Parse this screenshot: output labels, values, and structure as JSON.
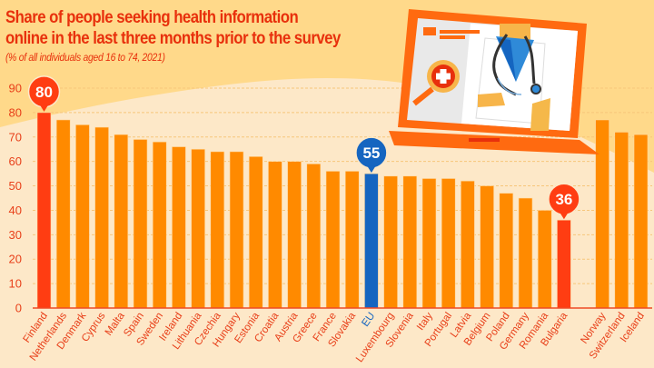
{
  "header": {
    "title_line1": "Share of people seeking health information",
    "title_line2": "online in the last three months prior to the survey",
    "subtitle": "(% of all individuals aged 16 to 74, 2021)"
  },
  "colors": {
    "bar_default": "#ff8a00",
    "bar_highlight": "#ff3d12",
    "bar_eu": "#1565c0",
    "background_light": "#fde8c8",
    "background_dark": "#ffd98a",
    "text_accent": "#e8300c"
  },
  "illustration": {
    "description": "laptop-with-doctor",
    "icons": [
      "laptop-icon",
      "doctor-icon",
      "stethoscope-icon",
      "medical-cross-icon"
    ]
  },
  "chart_data": {
    "type": "bar",
    "title": "Share of people seeking health information online in the last three months prior to the survey",
    "subtitle": "(% of all individuals aged 16 to 74, 2021)",
    "xlabel": "",
    "ylabel": "",
    "ylim": [
      0,
      90
    ],
    "yticks": [
      0,
      10,
      20,
      30,
      40,
      50,
      60,
      70,
      80,
      90
    ],
    "grid": true,
    "legend": "none",
    "categories": [
      "Finland",
      "Netherlands",
      "Denmark",
      "Cyprus",
      "Malta",
      "Spain",
      "Sweden",
      "Ireland",
      "Lithuania",
      "Czechia",
      "Hungary",
      "Estonia",
      "Croatia",
      "Austria",
      "Greece",
      "France",
      "Slovakia",
      "EU",
      "Luxembourg",
      "Slovenia",
      "Italy",
      "Portugal",
      "Latvia",
      "Belgium",
      "Poland",
      "Germany",
      "Romania",
      "Bulgaria",
      "Norway",
      "Switzerland",
      "Iceland"
    ],
    "values": [
      80,
      77,
      75,
      74,
      71,
      69,
      68,
      66,
      65,
      64,
      64,
      62,
      60,
      60,
      59,
      56,
      56,
      55,
      54,
      54,
      53,
      53,
      52,
      50,
      47,
      45,
      40,
      36,
      77,
      72,
      71
    ],
    "highlight": {
      "Finland": "max",
      "EU": "eu",
      "Bulgaria": "min"
    },
    "annotations": [
      {
        "category": "Finland",
        "label": "80"
      },
      {
        "category": "EU",
        "label": "55"
      },
      {
        "category": "Bulgaria",
        "label": "36"
      }
    ],
    "gap_after": "Bulgaria"
  }
}
